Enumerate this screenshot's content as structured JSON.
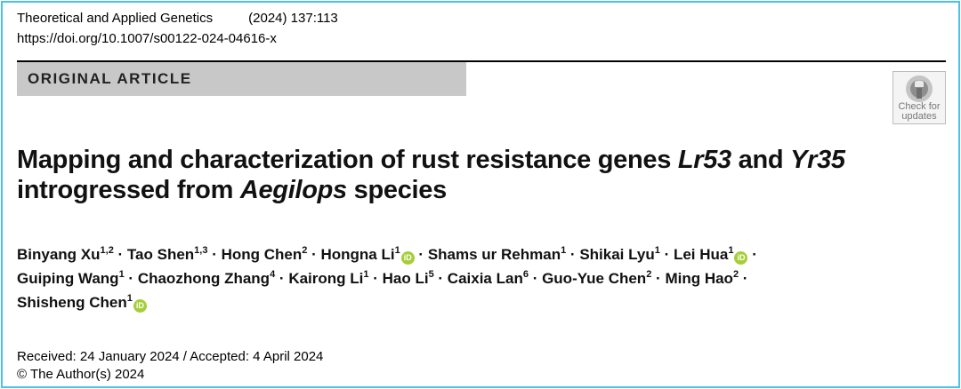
{
  "header": {
    "journal": "Theoretical and Applied Genetics",
    "citation": "(2024) 137:113",
    "doi": "https://doi.org/10.1007/s00122-024-04616-x"
  },
  "banner": {
    "label": "ORIGINAL ARTICLE"
  },
  "check_updates": {
    "line1": "Check for",
    "line2": "updates",
    "icon": "crossmark-icon"
  },
  "title": {
    "part1": "Mapping and characterization of rust resistance genes ",
    "gene1": "Lr53",
    "part2": " and ",
    "gene2": "Yr35",
    "part3": "introgressed from ",
    "genus": "Aegilops",
    "part4": " species"
  },
  "authors": [
    {
      "name": "Binyang Xu",
      "aff": "1,2",
      "orcid": false
    },
    {
      "name": "Tao Shen",
      "aff": "1,3",
      "orcid": false
    },
    {
      "name": "Hong Chen",
      "aff": "2",
      "orcid": false
    },
    {
      "name": "Hongna Li",
      "aff": "1",
      "orcid": true
    },
    {
      "name": "Shams ur Rehman",
      "aff": "1",
      "orcid": false
    },
    {
      "name": "Shikai Lyu",
      "aff": "1",
      "orcid": false
    },
    {
      "name": "Lei Hua",
      "aff": "1",
      "orcid": true
    },
    {
      "name": "Guiping Wang",
      "aff": "1",
      "orcid": false
    },
    {
      "name": "Chaozhong Zhang",
      "aff": "4",
      "orcid": false
    },
    {
      "name": "Kairong Li",
      "aff": "1",
      "orcid": false
    },
    {
      "name": "Hao Li",
      "aff": "5",
      "orcid": false
    },
    {
      "name": "Caixia Lan",
      "aff": "6",
      "orcid": false
    },
    {
      "name": "Guo-Yue Chen",
      "aff": "2",
      "orcid": false
    },
    {
      "name": "Ming Hao",
      "aff": "2",
      "orcid": false
    },
    {
      "name": "Shisheng Chen",
      "aff": "1",
      "orcid": true
    }
  ],
  "author_separator": " · ",
  "orcid_label": "iD",
  "dates": "Received: 24 January 2024 / Accepted: 4 April 2024",
  "copyright": "© The Author(s) 2024",
  "colors": {
    "frame": "#4fc1e9",
    "banner": "#c8c8c8",
    "orcid": "#a6ce39"
  }
}
